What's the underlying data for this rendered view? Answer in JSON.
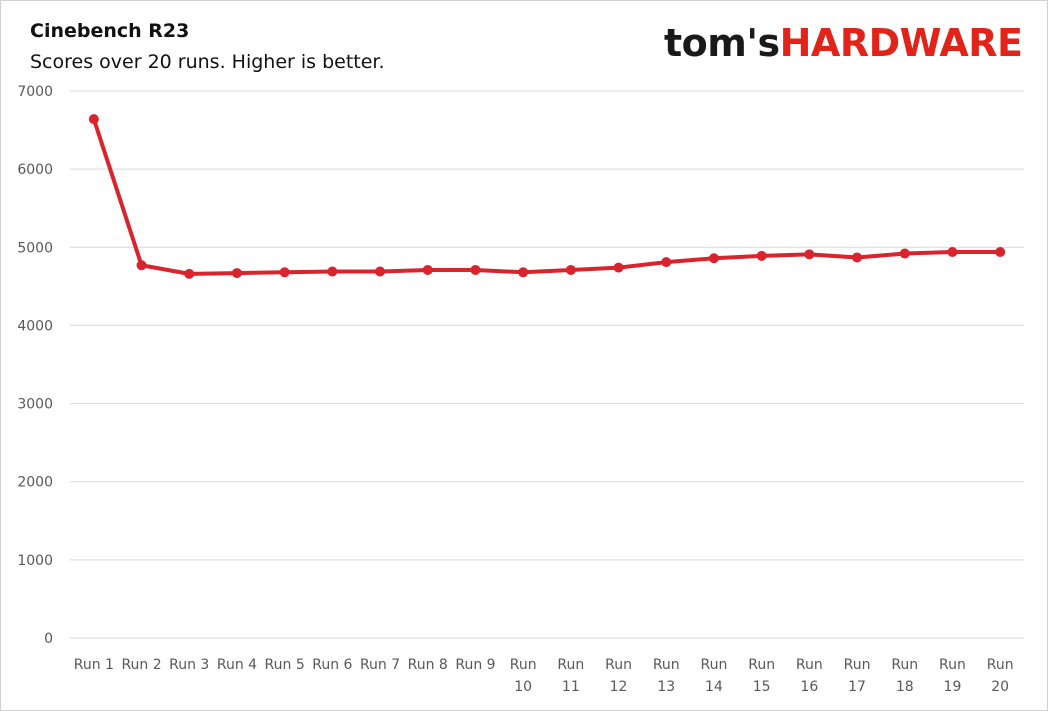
{
  "header": {
    "title": "Cinebench R23",
    "subtitle": "Scores over 20 runs. Higher is better."
  },
  "logo": {
    "text_dark": "tom's",
    "text_red": "HARDWARE"
  },
  "colors": {
    "series": "#d9232d",
    "grid": "#d9d9d9",
    "tick_text": "#595959",
    "brand_red": "#e2231a"
  },
  "chart_data": {
    "type": "line",
    "title": "Cinebench R23",
    "subtitle": "Scores over 20 runs. Higher is better.",
    "xlabel": "",
    "ylabel": "",
    "ylim": [
      0,
      7000
    ],
    "yticks": [
      0,
      1000,
      2000,
      3000,
      4000,
      5000,
      6000,
      7000
    ],
    "grid": true,
    "legend": "none",
    "categories": [
      [
        "Run 1"
      ],
      [
        "Run 2"
      ],
      [
        "Run 3"
      ],
      [
        "Run 4"
      ],
      [
        "Run 5"
      ],
      [
        "Run 6"
      ],
      [
        "Run 7"
      ],
      [
        "Run 8"
      ],
      [
        "Run 9"
      ],
      [
        "Run",
        "10"
      ],
      [
        "Run",
        "11"
      ],
      [
        "Run",
        "12"
      ],
      [
        "Run",
        "13"
      ],
      [
        "Run",
        "14"
      ],
      [
        "Run",
        "15"
      ],
      [
        "Run",
        "16"
      ],
      [
        "Run",
        "17"
      ],
      [
        "Run",
        "18"
      ],
      [
        "Run",
        "19"
      ],
      [
        "Run",
        "20"
      ]
    ],
    "series": [
      {
        "values": [
          6640,
          4770,
          4660,
          4670,
          4680,
          4690,
          4690,
          4710,
          4710,
          4680,
          4710,
          4740,
          4810,
          4860,
          4890,
          4910,
          4870,
          4920,
          4940,
          4940
        ]
      }
    ]
  }
}
